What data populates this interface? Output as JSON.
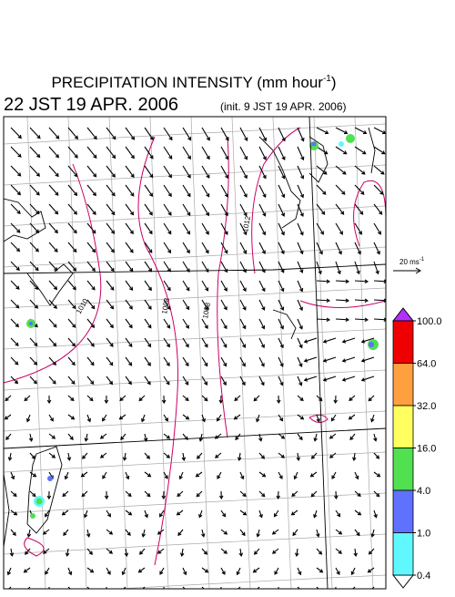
{
  "title": {
    "text": "PRECIPITATION INTENSITY (mm hour",
    "superscript": "-1",
    "suffix": ")"
  },
  "valid_time": "22 JST 19 APR. 2006",
  "init_time": "(init. 9 JST 19 APR. 2006)",
  "vector_scale": {
    "text": "20 ms",
    "superscript": "-1"
  },
  "contour_labels": [
    "1010",
    "1008",
    "1008",
    "1012"
  ],
  "colorbar": {
    "levels": [
      {
        "value": 100,
        "label": "100.0"
      },
      {
        "value": 64,
        "label": "64.0"
      },
      {
        "value": 32,
        "label": "32.0"
      },
      {
        "value": 16,
        "label": "16.0"
      },
      {
        "value": 4,
        "label": "4.0"
      },
      {
        "value": 1,
        "label": "1.0"
      },
      {
        "value": 0.4,
        "label": "0.4"
      }
    ],
    "colors": [
      "#ee0000",
      "#ffa040",
      "#ffff60",
      "#50e050",
      "#6070ff",
      "#60f8ff"
    ],
    "over_color": "#b030ff",
    "under_color": "#ffffff"
  }
}
